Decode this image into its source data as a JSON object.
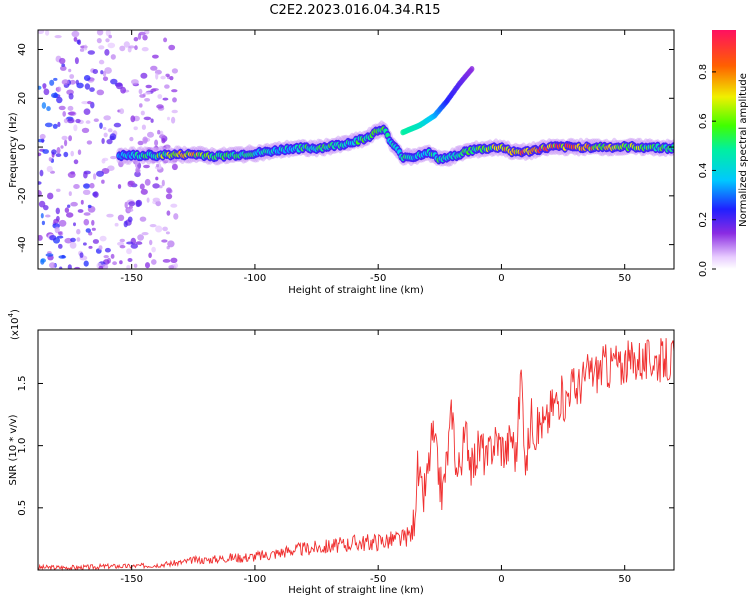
{
  "title": "C2E2.2023.016.04.34.R15",
  "colors": {
    "snr_line": "#f03030",
    "scatter_purple": "#8a2be2",
    "background": "#ffffff"
  },
  "chart_data": [
    {
      "type": "heatmap",
      "name": "spectrogram",
      "xlabel": "Height of straight line (km)",
      "ylabel": "Frequency (Hz)",
      "xlim": [
        -188,
        70
      ],
      "ylim": [
        -50,
        48
      ],
      "x_ticks": [
        -150,
        -100,
        -50,
        0,
        50
      ],
      "y_ticks": [
        40,
        20,
        0,
        -20,
        -40
      ],
      "x_tick_labels": [
        "-150",
        "-100",
        "-50",
        "0",
        "50"
      ],
      "y_tick_labels": [
        "40",
        "20",
        "0",
        "-20",
        "-40"
      ],
      "colorbar": {
        "label": "Normalized spectral amplitude",
        "range": [
          0,
          0.97
        ],
        "ticks": [
          0.0,
          0.2,
          0.4,
          0.6,
          0.8
        ],
        "tick_labels": [
          "0.0",
          "0.2",
          "0.4",
          "0.6",
          "0.8"
        ],
        "colormap": "rainbow"
      },
      "ridge": {
        "x": [
          -155,
          -145,
          -135,
          -125,
          -115,
          -105,
          -95,
          -85,
          -75,
          -65,
          -55,
          -48,
          -45,
          -40,
          -35,
          -30,
          -25,
          -20,
          -15,
          -10,
          -5,
          0,
          5,
          10,
          20,
          30,
          40,
          50,
          60,
          70
        ],
        "y": [
          -3.5,
          -3.5,
          -3.2,
          -3,
          -3.8,
          -3,
          -2,
          -0.5,
          -0.5,
          1,
          3.5,
          8,
          2,
          -4,
          -4,
          -2,
          -5,
          -4,
          -2,
          -1,
          -0.5,
          0,
          -2,
          -2,
          0,
          0,
          0,
          0,
          0,
          -0.5
        ],
        "amplitude": [
          0.35,
          0.5,
          0.65,
          0.75,
          0.55,
          0.5,
          0.45,
          0.45,
          0.55,
          0.5,
          0.55,
          0.55,
          0.45,
          0.5,
          0.4,
          0.5,
          0.55,
          0.5,
          0.55,
          0.6,
          0.65,
          0.7,
          0.75,
          0.85,
          0.85,
          0.8,
          0.75,
          0.65,
          0.6,
          0.55
        ]
      },
      "branch": {
        "x": [
          -40,
          -33,
          -27,
          -22,
          -17,
          -12
        ],
        "y": [
          6,
          9,
          13,
          19,
          26,
          32
        ],
        "amplitude": [
          0.5,
          0.45,
          0.35,
          0.25,
          0.2,
          0.15
        ]
      },
      "noise_region": {
        "x_range": [
          -188,
          -132
        ],
        "amplitude": [
          0.05,
          0.3
        ]
      }
    },
    {
      "type": "line",
      "name": "snr",
      "xlabel": "Height of straight line (km)",
      "ylabel": "SNR (10 * v/v)",
      "exponent_label": "(x10",
      "exponent_power": "4",
      "exponent_close": ")",
      "xlim": [
        -188,
        70
      ],
      "ylim": [
        0.0,
        1.93
      ],
      "x_ticks": [
        -150,
        -100,
        -50,
        0,
        50
      ],
      "y_ticks": [
        0.5,
        1.0,
        1.5
      ],
      "x_tick_labels": [
        "-150",
        "-100",
        "-50",
        "0",
        "50"
      ],
      "y_tick_labels": [
        "0.5",
        "1.0",
        "1.5"
      ],
      "series": [
        {
          "x": [
            -188,
            -170,
            -160,
            -150,
            -140,
            -135,
            -130,
            -125,
            -120,
            -115,
            -110,
            -105,
            -100,
            -95,
            -90,
            -85,
            -80,
            -75,
            -70,
            -65,
            -60,
            -55,
            -50,
            -45,
            -40,
            -36,
            -34,
            -32,
            -30,
            -28,
            -26,
            -24,
            -22,
            -20,
            -18,
            -16,
            -14,
            -12,
            -10,
            -8,
            -6,
            -4,
            -2,
            0,
            2,
            4,
            6,
            8,
            10,
            12,
            14,
            16,
            18,
            20,
            22,
            24,
            26,
            28,
            30,
            32,
            34,
            36,
            38,
            40,
            42,
            44,
            46,
            48,
            50,
            52,
            54,
            56,
            58,
            60,
            62,
            64,
            66,
            68,
            70
          ],
          "y": [
            0.02,
            0.02,
            0.03,
            0.03,
            0.04,
            0.05,
            0.06,
            0.08,
            0.08,
            0.09,
            0.1,
            0.1,
            0.11,
            0.12,
            0.14,
            0.16,
            0.17,
            0.18,
            0.19,
            0.2,
            0.22,
            0.22,
            0.23,
            0.24,
            0.25,
            0.3,
            0.8,
            0.55,
            0.75,
            1.1,
            0.85,
            0.6,
            0.9,
            1.3,
            0.75,
            0.95,
            1.1,
            0.8,
            0.95,
            1.0,
            0.85,
            1.0,
            1.05,
            1.0,
            0.95,
            1.1,
            0.9,
            1.6,
            0.8,
            1.25,
            1.1,
            1.2,
            1.15,
            1.3,
            1.35,
            1.4,
            1.35,
            1.5,
            1.45,
            1.5,
            1.55,
            1.6,
            1.58,
            1.62,
            1.65,
            1.62,
            1.7,
            1.6,
            1.68,
            1.66,
            1.68,
            1.7,
            1.66,
            1.69,
            1.7,
            1.68,
            1.7,
            1.67,
            1.7
          ]
        }
      ]
    }
  ]
}
